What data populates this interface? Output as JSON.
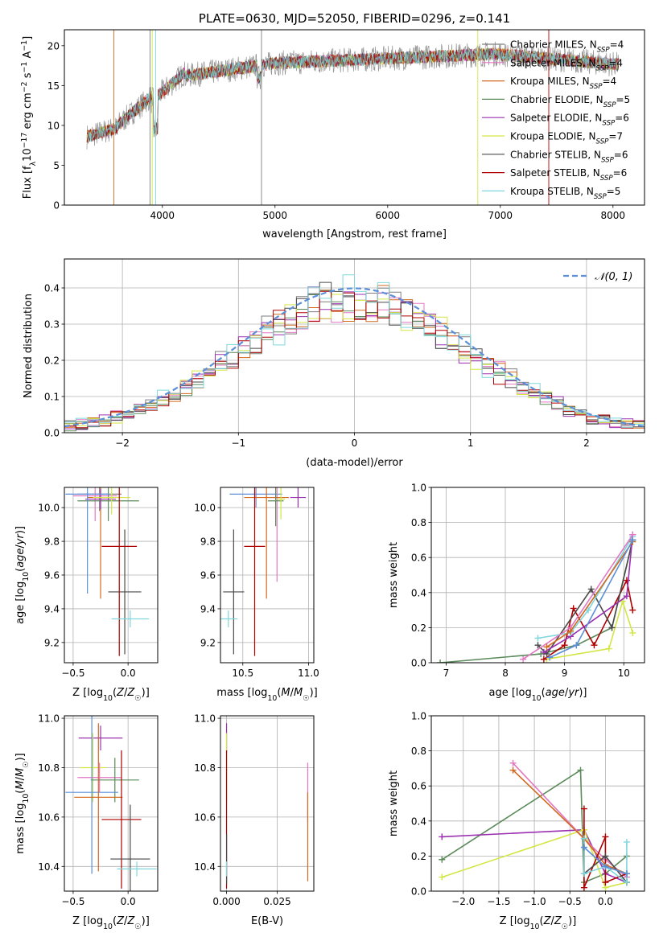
{
  "chart_data": [
    {
      "type": "line",
      "title": "PLATE=0630, MJD=52050, FIBERID=0296, z=0.141",
      "xlabel": "wavelength [Angstrom, rest frame]",
      "ylabel": "Flux [fλ10⁻¹⁷ erg cm⁻² s⁻¹ A⁻¹]",
      "xlim": [
        3130,
        8280
      ],
      "ylim": [
        0,
        22
      ],
      "xticks": [
        "4000",
        "5000",
        "6000",
        "7000",
        "8000"
      ],
      "yticks": [
        "0",
        "5",
        "10",
        "15",
        "20"
      ],
      "grid": false,
      "legend_position": "right",
      "spectrum_x_range": [
        3330,
        8050
      ],
      "series": [
        {
          "name": "Chabrier MILES, N_SSP=4",
          "label_main": "Chabrier MILES, N",
          "label_sub": "SSP",
          "label_end": "=4",
          "color": "#7f7f7f"
        },
        {
          "name": "Salpeter MILES, N_SSP=4",
          "label_main": "Salpeter MILES, N",
          "label_sub": "SSP",
          "label_end": "=4",
          "color": "#e377c2"
        },
        {
          "name": "Kroupa MILES, N_SSP=4",
          "label_main": "Kroupa MILES, N",
          "label_sub": "SSP",
          "label_end": "=4",
          "color": "#d2691e"
        },
        {
          "name": "Chabrier ELODIE, N_SSP=5",
          "label_main": "Chabrier ELODIE, N",
          "label_sub": "SSP",
          "label_end": "=5",
          "color": "#5b8a5b"
        },
        {
          "name": "Salpeter ELODIE, N_SSP=6",
          "label_main": "Salpeter ELODIE, N",
          "label_sub": "SSP",
          "label_end": "=6",
          "color": "#9b30b0"
        },
        {
          "name": "Kroupa ELODIE, N_SSP=7",
          "label_main": "Kroupa ELODIE, N",
          "label_sub": "SSP",
          "label_end": "=7",
          "color": "#d4e645"
        },
        {
          "name": "Chabrier STELIB, N_SSP=6",
          "label_main": "Chabrier STELIB, N",
          "label_sub": "SSP",
          "label_end": "=6",
          "color": "#4a4a4a"
        },
        {
          "name": "Salpeter STELIB, N_SSP=6",
          "label_main": "Salpeter STELIB, N",
          "label_sub": "SSP",
          "label_end": "=6",
          "color": "#b00000"
        },
        {
          "name": "Kroupa STELIB, N_SSP=5",
          "label_main": "Kroupa STELIB, N",
          "label_sub": "SSP",
          "label_end": "=5",
          "color": "#7fd6dc"
        }
      ]
    },
    {
      "type": "histogram",
      "xlabel": "(data-model)/error",
      "ylabel": "Normed distribution",
      "xlim": [
        -2.5,
        2.5
      ],
      "ylim": [
        0,
        0.48
      ],
      "xticks": [
        "−2",
        "−1",
        "0",
        "1",
        "2"
      ],
      "yticks": [
        "0.0",
        "0.1",
        "0.2",
        "0.3",
        "0.4"
      ],
      "grid": true,
      "legend_position": "top-right",
      "reference_curve": {
        "label": "N(0,1)",
        "mean": 0,
        "sigma": 1,
        "color": "#5b8fd8"
      },
      "colors": [
        "#7f7f7f",
        "#e377c2",
        "#d2691e",
        "#5b8a5b",
        "#9b30b0",
        "#d4e645",
        "#4a4a4a",
        "#b00000",
        "#7fd6dc"
      ]
    },
    {
      "type": "errorbar",
      "xlabel": "Z [log10(Z/Z☉)]",
      "ylabel": "age [log10(age/yr)]",
      "xlim": [
        -0.58,
        0.27
      ],
      "ylim": [
        9.08,
        10.12
      ],
      "xticks": [
        "−0.5",
        "0.0"
      ],
      "yticks": [
        "9.2",
        "9.4",
        "9.6",
        "9.8",
        "10.0"
      ],
      "grid": true,
      "points": [
        {
          "x": -0.26,
          "y": 10.08,
          "xerr": 0.2,
          "yerr": 0.1,
          "color": "#7f7f7f"
        },
        {
          "x": -0.3,
          "y": 10.07,
          "xerr": 0.2,
          "yerr": 0.15,
          "color": "#e377c2"
        },
        {
          "x": -0.25,
          "y": 10.06,
          "xerr": 0.12,
          "yerr": 0.6,
          "color": "#d2691e"
        },
        {
          "x": -0.18,
          "y": 10.04,
          "xerr": 0.28,
          "yerr": 0.12,
          "color": "#5b8a5b"
        },
        {
          "x": -0.25,
          "y": 10.05,
          "xerr": 0.14,
          "yerr": 0.06,
          "color": "#9b30b0"
        },
        {
          "x": -0.15,
          "y": 10.06,
          "xerr": 0.17,
          "yerr": 0.1,
          "color": "#d4e645"
        },
        {
          "x": -0.03,
          "y": 9.5,
          "xerr": 0.15,
          "yerr": 0.37,
          "color": "#4a4a4a"
        },
        {
          "x": -0.08,
          "y": 9.77,
          "xerr": 0.16,
          "yerr": 0.65,
          "color": "#b00000"
        },
        {
          "x": 0.02,
          "y": 9.34,
          "xerr": 0.17,
          "yerr": 0.05,
          "color": "#7fd6dc"
        },
        {
          "x": -0.37,
          "y": 10.08,
          "xerr": 0.2,
          "yerr": 0.59,
          "color": "#5b8fd8"
        }
      ]
    },
    {
      "type": "errorbar",
      "xlabel": "mass [log10(M/M☉)]",
      "ylabel": "",
      "xlim": [
        10.33,
        11.04
      ],
      "ylim": [
        9.08,
        10.12
      ],
      "xticks": [
        "10.5",
        "11.0"
      ],
      "yticks": [
        "9.2",
        "9.4",
        "9.6",
        "9.8",
        "10.0"
      ],
      "grid": true,
      "points": [
        {
          "x": 10.6,
          "y": 10.08,
          "xerr": 0.2,
          "yerr": 0.08,
          "color": "#5b8fd8"
        },
        {
          "x": 10.76,
          "y": 10.06,
          "xerr": 0.06,
          "yerr": 0.5,
          "color": "#e377c2"
        },
        {
          "x": 10.68,
          "y": 10.06,
          "xerr": 0.17,
          "yerr": 0.6,
          "color": "#d2691e"
        },
        {
          "x": 10.75,
          "y": 10.04,
          "xerr": 0.06,
          "yerr": 0.15,
          "color": "#5b8a5b"
        },
        {
          "x": 10.92,
          "y": 10.06,
          "xerr": 0.06,
          "yerr": 0.06,
          "color": "#9b30b0"
        },
        {
          "x": 10.79,
          "y": 10.05,
          "xerr": 0.03,
          "yerr": 0.12,
          "color": "#d4e645"
        },
        {
          "x": 10.43,
          "y": 9.5,
          "xerr": 0.08,
          "yerr": 0.37,
          "color": "#4a4a4a"
        },
        {
          "x": 10.59,
          "y": 9.77,
          "xerr": 0.08,
          "yerr": 0.65,
          "color": "#b00000"
        },
        {
          "x": 10.39,
          "y": 9.34,
          "xerr": 0.07,
          "yerr": 0.05,
          "color": "#7fd6dc"
        }
      ]
    },
    {
      "type": "line",
      "xlabel": "age [log10(age/yr)]",
      "ylabel": "mass weight",
      "xlim": [
        6.75,
        10.35
      ],
      "ylim": [
        0,
        1.0
      ],
      "xticks": [
        "7",
        "8",
        "9",
        "10"
      ],
      "yticks": [
        "0.0",
        "0.2",
        "0.4",
        "0.6",
        "0.8",
        "1.0"
      ],
      "grid": true,
      "series": [
        {
          "color": "#5b8a5b",
          "x": [
            6.9,
            8.6,
            9.2,
            9.8,
            10.15
          ],
          "y": [
            0.0,
            0.05,
            0.1,
            0.2,
            0.7
          ]
        },
        {
          "color": "#d4e645",
          "x": [
            8.7,
            9.75,
            9.98,
            10.15
          ],
          "y": [
            0.02,
            0.08,
            0.35,
            0.17
          ]
        },
        {
          "color": "#b00000",
          "x": [
            8.65,
            9.0,
            9.15,
            9.5,
            10.05,
            10.15
          ],
          "y": [
            0.02,
            0.1,
            0.31,
            0.1,
            0.47,
            0.3
          ]
        },
        {
          "color": "#4a4a4a",
          "x": [
            8.55,
            8.7,
            9.45,
            9.8,
            10.15
          ],
          "y": [
            0.1,
            0.05,
            0.42,
            0.2,
            0.7
          ]
        },
        {
          "color": "#9b30b0",
          "x": [
            8.65,
            9.1,
            10.05,
            10.15
          ],
          "y": [
            0.06,
            0.15,
            0.38,
            0.73
          ]
        },
        {
          "color": "#7fd6dc",
          "x": [
            8.55,
            9.1,
            9.4,
            10.15
          ],
          "y": [
            0.14,
            0.17,
            0.3,
            0.72
          ]
        },
        {
          "color": "#e377c2",
          "x": [
            8.3,
            9.1,
            10.15
          ],
          "y": [
            0.02,
            0.2,
            0.73
          ]
        },
        {
          "color": "#d2691e",
          "x": [
            8.7,
            9.1,
            10.15
          ],
          "y": [
            0.09,
            0.18,
            0.69
          ]
        },
        {
          "color": "#5b8fd8",
          "x": [
            8.75,
            9.2,
            10.15
          ],
          "y": [
            0.03,
            0.1,
            0.7
          ]
        }
      ]
    },
    {
      "type": "errorbar",
      "xlabel": "Z [log10(Z/Z☉)]",
      "ylabel": "mass [log10(M/M☉)]",
      "xlim": [
        -0.58,
        0.27
      ],
      "ylim": [
        10.3,
        11.01
      ],
      "xticks": [
        "−0.5",
        "0.0"
      ],
      "yticks": [
        "10.4",
        "10.6",
        "10.8",
        "11.0"
      ],
      "grid": true,
      "points": [
        {
          "x": -0.25,
          "y": 10.92,
          "xerr": 0.2,
          "yerr": 0.05,
          "color": "#9b30b0"
        },
        {
          "x": -0.32,
          "y": 10.8,
          "xerr": 0.12,
          "yerr": 0.14,
          "color": "#d4e645"
        },
        {
          "x": -0.26,
          "y": 10.76,
          "xerr": 0.2,
          "yerr": 0.06,
          "color": "#e377c2"
        },
        {
          "x": -0.12,
          "y": 10.75,
          "xerr": 0.22,
          "yerr": 0.09,
          "color": "#5b8a5b"
        },
        {
          "x": -0.33,
          "y": 10.7,
          "xerr": 0.24,
          "yerr": 0.33,
          "color": "#5b8fd8"
        },
        {
          "x": -0.27,
          "y": 10.68,
          "xerr": 0.22,
          "yerr": 0.3,
          "color": "#d2691e"
        },
        {
          "x": -0.06,
          "y": 10.59,
          "xerr": 0.18,
          "yerr": 0.28,
          "color": "#b00000"
        },
        {
          "x": 0.02,
          "y": 10.43,
          "xerr": 0.18,
          "yerr": 0.22,
          "color": "#4a4a4a"
        },
        {
          "x": 0.08,
          "y": 10.39,
          "xerr": 0.18,
          "yerr": 0.03,
          "color": "#7fd6dc"
        }
      ]
    },
    {
      "type": "errorbar",
      "xlabel": "E(B-V)",
      "ylabel": "",
      "xlim": [
        -0.003,
        0.043
      ],
      "ylim": [
        10.3,
        11.01
      ],
      "xticks": [
        "0.000",
        "0.025"
      ],
      "yticks": [
        "10.4",
        "10.6",
        "10.8",
        "11.0"
      ],
      "grid": true,
      "points": [
        {
          "x": 0.0,
          "y": 10.92,
          "xerr": 0,
          "yerr": 0.06,
          "color": "#9b30b0"
        },
        {
          "x": 0.0,
          "y": 10.8,
          "xerr": 0,
          "yerr": 0.14,
          "color": "#d4e645"
        },
        {
          "x": 0.0,
          "y": 10.59,
          "xerr": 0,
          "yerr": 0.28,
          "color": "#b00000"
        },
        {
          "x": 0.0,
          "y": 10.43,
          "xerr": 0,
          "yerr": 0.1,
          "color": "#4a4a4a"
        },
        {
          "x": 0.0,
          "y": 10.39,
          "xerr": 0,
          "yerr": 0.03,
          "color": "#7fd6dc"
        },
        {
          "x": 0.04,
          "y": 10.7,
          "xerr": 0,
          "yerr": 0.12,
          "color": "#e377c2"
        },
        {
          "x": 0.04,
          "y": 10.52,
          "xerr": 0,
          "yerr": 0.18,
          "color": "#d2691e"
        }
      ]
    },
    {
      "type": "line",
      "xlabel": "Z [log10(Z/Z☉)]",
      "ylabel": "mass weight",
      "xlim": [
        -2.45,
        0.55
      ],
      "ylim": [
        0,
        1.0
      ],
      "xticks": [
        "−2.0",
        "−1.5",
        "−1.0",
        "−0.5",
        "0.0"
      ],
      "yticks": [
        "0.0",
        "0.2",
        "0.4",
        "0.6",
        "0.8",
        "1.0"
      ],
      "grid": true,
      "series": [
        {
          "color": "#5b8a5b",
          "x": [
            -2.3,
            -0.35,
            -0.3,
            0.0,
            0.3
          ],
          "y": [
            0.18,
            0.69,
            0.05,
            0.1,
            0.2
          ]
        },
        {
          "color": "#9b30b0",
          "x": [
            -2.3,
            -0.3,
            0.0,
            0.3
          ],
          "y": [
            0.31,
            0.35,
            0.1,
            0.05
          ]
        },
        {
          "color": "#d4e645",
          "x": [
            -2.3,
            -0.3,
            0.0,
            0.3
          ],
          "y": [
            0.08,
            0.35,
            0.02,
            0.05
          ]
        },
        {
          "color": "#e377c2",
          "x": [
            -1.3,
            -0.3,
            0.0,
            0.3
          ],
          "y": [
            0.73,
            0.3,
            0.18,
            0.08
          ]
        },
        {
          "color": "#d2691e",
          "x": [
            -1.3,
            -0.3,
            0.0,
            0.3
          ],
          "y": [
            0.69,
            0.3,
            0.15,
            0.1
          ]
        },
        {
          "color": "#b00000",
          "x": [
            -0.3,
            -0.3,
            0.0,
            0.0,
            0.3
          ],
          "y": [
            0.47,
            0.02,
            0.31,
            0.05,
            0.1
          ]
        },
        {
          "color": "#4a4a4a",
          "x": [
            -0.3,
            0.0,
            0.3,
            0.3
          ],
          "y": [
            0.1,
            0.2,
            0.05,
            0.1
          ]
        },
        {
          "color": "#7fd6dc",
          "x": [
            -0.3,
            -0.3,
            0.0,
            0.3,
            0.3
          ],
          "y": [
            0.3,
            0.1,
            0.14,
            0.05,
            0.28
          ]
        },
        {
          "color": "#5b8fd8",
          "x": [
            -0.3,
            0.0,
            0.3
          ],
          "y": [
            0.25,
            0.14,
            0.1
          ]
        }
      ]
    }
  ]
}
